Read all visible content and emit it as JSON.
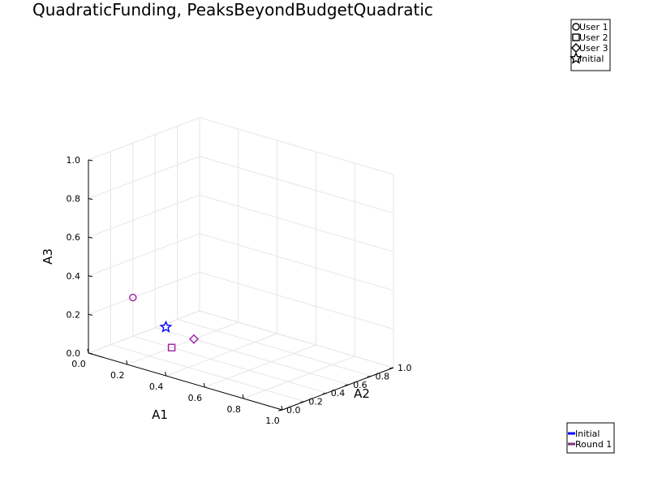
{
  "chart_data": {
    "type": "scatter",
    "title": "QuadraticFunding, PeaksBeyondBudgetQuadratic",
    "xlabel": "A1",
    "ylabel": "A2",
    "zlabel": "A3",
    "xlim": [
      0.0,
      1.0
    ],
    "ylim": [
      0.0,
      1.0
    ],
    "zlim": [
      0.0,
      1.0
    ],
    "x_ticks": [
      "0.0",
      "0.2",
      "0.4",
      "0.6",
      "0.8",
      "1.0"
    ],
    "y_ticks": [
      "0.0",
      "0.2",
      "0.4",
      "0.6",
      "0.8",
      "1.0"
    ],
    "z_ticks": [
      "0.0",
      "0.2",
      "0.4",
      "0.6",
      "0.8",
      "1.0"
    ],
    "grid": true,
    "points": [
      {
        "name": "User 1",
        "marker": "circle",
        "color": "#9b1fa6",
        "x": 0.0,
        "y": 0.4,
        "z": 0.2
      },
      {
        "name": "User 2",
        "marker": "square",
        "color": "#9b1fa6",
        "x": 0.2,
        "y": 0.4,
        "z": 0.0
      },
      {
        "name": "User 3",
        "marker": "diamond",
        "color": "#9b1fa6",
        "x": 0.2,
        "y": 0.6,
        "z": 0.0
      },
      {
        "name": "Initial",
        "marker": "star",
        "color": "#0000ff",
        "x": 0.13,
        "y": 0.47,
        "z": 0.07
      }
    ],
    "marker_legend": {
      "placement": "top-right",
      "entries": [
        {
          "label": "User 1",
          "marker": "circle"
        },
        {
          "label": "User 2",
          "marker": "square"
        },
        {
          "label": "User 3",
          "marker": "diamond"
        },
        {
          "label": "Initial",
          "marker": "star"
        }
      ]
    },
    "line_legend": {
      "placement": "bottom-right",
      "entries": [
        {
          "label": "Initial",
          "color": "#0000ff"
        },
        {
          "label": "Round 1",
          "color": "#80307f"
        }
      ]
    }
  }
}
